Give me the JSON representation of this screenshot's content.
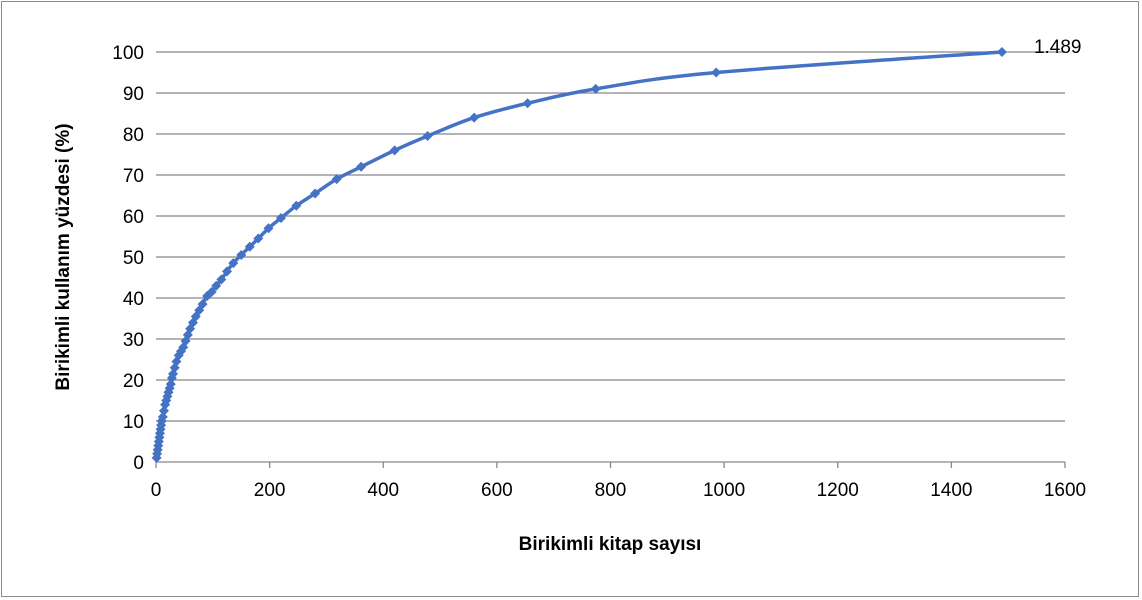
{
  "chart_data": {
    "type": "scatter",
    "title": "",
    "xlabel": "Birikimli kitap sayısı",
    "ylabel": "Birikimli kullanım yüzdesi (%)",
    "xlim": [
      0,
      1600
    ],
    "ylim": [
      0,
      100
    ],
    "x_ticks": [
      "0",
      "200",
      "400",
      "600",
      "800",
      "1000",
      "1200",
      "1400",
      "1600"
    ],
    "y_ticks": [
      "0",
      "10",
      "20",
      "30",
      "40",
      "50",
      "60",
      "70",
      "80",
      "90",
      "100"
    ],
    "grid": "horizontal",
    "line_style": "smooth line with diamond markers",
    "series_color": "#4472c4",
    "series": [
      {
        "name": "",
        "x": [
          1,
          2,
          3,
          4,
          5,
          6,
          7,
          8,
          9,
          10,
          12,
          14,
          16,
          18,
          20,
          22,
          24,
          26,
          28,
          30,
          33,
          36,
          40,
          44,
          48,
          52,
          56,
          60,
          65,
          70,
          76,
          82,
          90,
          98,
          106,
          115,
          125,
          136,
          150,
          165,
          180,
          198,
          220,
          247,
          280,
          318,
          361,
          420,
          478,
          560,
          654,
          774,
          986,
          1489
        ],
        "y": [
          1,
          2,
          3,
          4,
          5,
          6,
          7,
          8,
          9,
          10,
          11,
          12.5,
          14,
          15,
          16,
          17,
          18,
          19,
          20.5,
          21.5,
          23,
          24.5,
          26,
          27,
          28,
          29.5,
          31,
          32.5,
          34,
          35.5,
          37,
          38.5,
          40.5,
          41.5,
          43,
          44.5,
          46.5,
          48.5,
          50.5,
          52.5,
          54.5,
          57,
          59.5,
          62.5,
          65.5,
          69,
          72,
          76,
          79.5,
          84,
          87.5,
          91,
          95,
          100
        ]
      }
    ],
    "annotations": [
      {
        "text": "1.489",
        "x": 1489,
        "y": 100
      }
    ]
  }
}
